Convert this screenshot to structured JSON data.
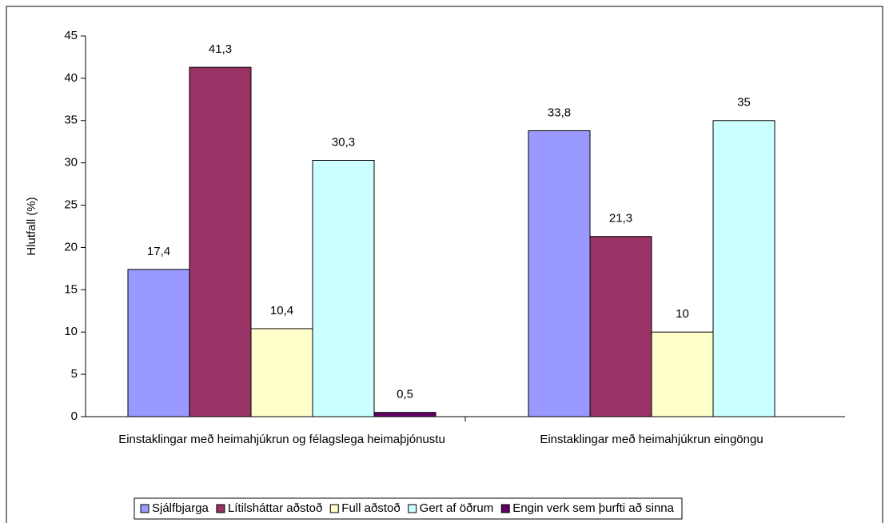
{
  "chart_data": {
    "type": "bar",
    "y_label": "Hlutfall (%)",
    "categories": [
      "Einstaklingar með heimahjúkrun og félagslega heimaþjónustu",
      "Einstaklingar með heimahjúkrun eingöngu"
    ],
    "series": [
      {
        "name": "Sjálfbjarga",
        "color": "#9999ff",
        "values": [
          17.4,
          33.8
        ],
        "value_labels": [
          "17,4",
          "33,8"
        ]
      },
      {
        "name": "Lítilsháttar aðstoð",
        "color": "#993366",
        "values": [
          41.3,
          21.3
        ],
        "value_labels": [
          "41,3",
          "21,3"
        ]
      },
      {
        "name": "Full aðstoð",
        "color": "#ffffcc",
        "values": [
          10.4,
          10
        ],
        "value_labels": [
          "10,4",
          "10"
        ]
      },
      {
        "name": "Gert af öðrum",
        "color": "#ccffff",
        "values": [
          30.3,
          35
        ],
        "value_labels": [
          "30,3",
          "35"
        ]
      },
      {
        "name": "Engin verk sem þurfti að sinna",
        "color": "#660066",
        "values": [
          0.5,
          null
        ],
        "value_labels": [
          "0,5",
          null
        ]
      }
    ],
    "ylim": [
      0,
      45
    ],
    "yticks": [
      0,
      5,
      10,
      15,
      20,
      25,
      30,
      35,
      40,
      45
    ],
    "grid": false,
    "legend": "bottom"
  }
}
